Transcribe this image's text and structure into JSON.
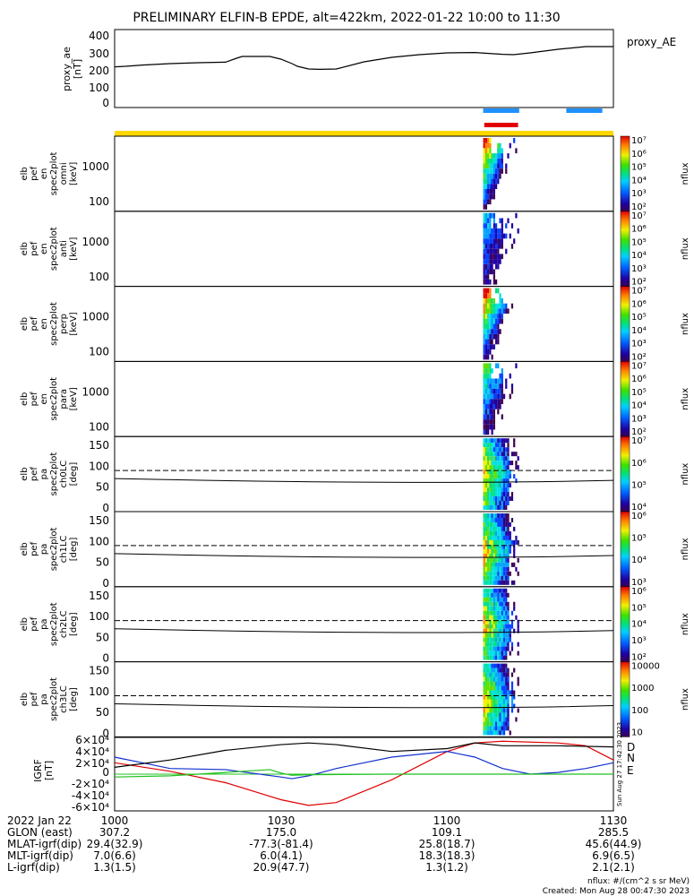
{
  "title": "PRELIMINARY ELFIN-B EPDE, alt=422km, 2022-01-22 10:00 to 11:30",
  "colors": {
    "science_bar": "#1e90ff",
    "epd_bar": "#e00000",
    "yellow_bar": "#ffd700",
    "grf_D": "#e00000",
    "grf_N": "#1030d0",
    "grf_E": "#20c020"
  },
  "chart_data": [
    {
      "id": "proxy_ae",
      "type": "line",
      "title": "",
      "legend": "proxy_AE",
      "ylabel": [
        "proxy_ae",
        "[nT]"
      ],
      "ylim": [
        0,
        400
      ],
      "yticks": [
        "400",
        "300",
        "200",
        "100",
        "0"
      ],
      "x_minutes": [
        0,
        2,
        5,
        10,
        15,
        20,
        22,
        23,
        25,
        28,
        30,
        32,
        33,
        35,
        37,
        40,
        45,
        50,
        55,
        60,
        65,
        70,
        72,
        75,
        80,
        85,
        90
      ],
      "values": [
        222,
        225,
        232,
        240,
        245,
        248,
        270,
        280,
        280,
        280,
        265,
        240,
        225,
        210,
        208,
        210,
        250,
        275,
        290,
        300,
        302,
        292,
        290,
        300,
        320,
        335,
        335
      ]
    },
    {
      "id": "science_bars",
      "type": "bar",
      "segments": [
        {
          "name": "science zone",
          "color": "#1e90ff",
          "start_min": 66.5,
          "end_min": 73.0
        },
        {
          "name": "science zone",
          "color": "#1e90ff",
          "start_min": 81.5,
          "end_min": 88.0
        },
        {
          "name": "epd",
          "color": "#e00000",
          "start_min": 66.7,
          "end_min": 72.8
        }
      ]
    },
    {
      "id": "spec_panels",
      "type": "heatmap",
      "colorbar_label": "nflux",
      "colorbar_ticks": [
        "10",
        "100",
        "1000",
        "10000",
        "10²",
        "10³",
        "10⁴",
        "10⁵",
        "10⁶",
        "10⁷"
      ],
      "panels": [
        {
          "label": [
            "elb",
            "pef",
            "en",
            "spec2plot",
            "omni",
            "[keV]"
          ],
          "yticks": [
            "1000",
            "100"
          ],
          "kind": "energy"
        },
        {
          "label": [
            "elb",
            "pef",
            "en",
            "spec2plot",
            "anti",
            "[keV]"
          ],
          "yticks": [
            "1000",
            "100"
          ],
          "kind": "energy"
        },
        {
          "label": [
            "elb",
            "pef",
            "en",
            "spec2plot",
            "perp",
            "[keV]"
          ],
          "yticks": [
            "1000",
            "100"
          ],
          "kind": "energy"
        },
        {
          "label": [
            "elb",
            "pef",
            "en",
            "spec2plot",
            "para",
            "[keV]"
          ],
          "yticks": [
            "1000",
            "100"
          ],
          "kind": "energy"
        },
        {
          "label": [
            "elb",
            "pef",
            "pa",
            "spec2plot",
            "ch0LC",
            "[deg]"
          ],
          "yticks": [
            "150",
            "100",
            "50",
            "0"
          ],
          "kind": "pa",
          "ylim": [
            0,
            180
          ]
        },
        {
          "label": [
            "elb",
            "pef",
            "pa",
            "spec2plot",
            "ch1LC",
            "[deg]"
          ],
          "yticks": [
            "150",
            "100",
            "50",
            "0"
          ],
          "kind": "pa",
          "ylim": [
            0,
            180
          ]
        },
        {
          "label": [
            "elb",
            "pef",
            "pa",
            "spec2plot",
            "ch2LC",
            "[deg]"
          ],
          "yticks": [
            "150",
            "100",
            "50",
            "0"
          ],
          "kind": "pa",
          "ylim": [
            0,
            180
          ]
        },
        {
          "label": [
            "elb",
            "pef",
            "pa",
            "spec2plot",
            "ch3LC",
            "[deg]"
          ],
          "yticks": [
            "150",
            "100",
            "50",
            "0"
          ],
          "kind": "pa",
          "ylim": [
            0,
            180
          ]
        }
      ],
      "colorbar_tick_sets": [
        [
          "10⁷",
          "10⁶",
          "10⁵",
          "10⁴",
          "10³",
          "10²"
        ],
        [
          "10⁷",
          "10⁶",
          "10⁵",
          "10⁴",
          "10³",
          "10²"
        ],
        [
          "10⁷",
          "10⁶",
          "10⁵",
          "10⁴",
          "10³",
          "10²"
        ],
        [
          "10⁷",
          "10⁶",
          "10⁵",
          "10⁴",
          "10³",
          "10²"
        ],
        [
          "10⁷",
          "10⁶",
          "10⁵",
          "10⁴"
        ],
        [
          "10⁶",
          "10⁵",
          "10⁴",
          "10³"
        ],
        [
          "10⁶",
          "10⁵",
          "10⁴",
          "10³",
          "10²"
        ],
        [
          "10000",
          "1000",
          "100",
          "10"
        ]
      ]
    },
    {
      "id": "igrf",
      "type": "line",
      "ylabel": [
        "IGRF",
        "[nT]"
      ],
      "ylim": [
        -60000,
        60000
      ],
      "yticks": [
        "6×10⁴",
        "4×10⁴",
        "2×10⁴",
        "0",
        "-2×10⁴",
        "-4×10⁴",
        "-6×10⁴"
      ],
      "series": [
        {
          "name": "D",
          "color": "#e00000",
          "x_minutes": [
            0,
            10,
            20,
            30,
            35,
            40,
            50,
            60,
            65,
            70,
            80,
            85,
            90
          ],
          "values": [
            20000,
            5000,
            -15000,
            -45000,
            -55000,
            -50000,
            -10000,
            40000,
            55000,
            58000,
            55000,
            50000,
            25000
          ]
        },
        {
          "name": "N",
          "color": "#1030d0",
          "x_minutes": [
            0,
            5,
            10,
            20,
            30,
            32,
            35,
            40,
            50,
            60,
            65,
            70,
            75,
            80,
            85,
            90
          ],
          "values": [
            30000,
            20000,
            10000,
            8000,
            -5000,
            -8000,
            -3000,
            10000,
            30000,
            40000,
            30000,
            10000,
            0,
            3000,
            10000,
            20000
          ]
        },
        {
          "name": "E",
          "color": "#20c020",
          "x_minutes": [
            0,
            10,
            20,
            28,
            30,
            32,
            35,
            50,
            70,
            90
          ],
          "values": [
            -5000,
            -3000,
            3000,
            8000,
            2000,
            -2000,
            -1000,
            0,
            0,
            0
          ]
        },
        {
          "name": "",
          "color": "#000000",
          "x_minutes": [
            0,
            10,
            20,
            30,
            35,
            40,
            50,
            60,
            65,
            70,
            80,
            90
          ],
          "values": [
            12000,
            25000,
            42000,
            52000,
            55000,
            52000,
            40000,
            45000,
            55000,
            50000,
            50000,
            48000
          ]
        }
      ]
    }
  ],
  "xaxis": {
    "ticks": [
      "1000",
      "1030",
      "1100",
      "1130"
    ],
    "date": "2022 Jan 22",
    "rows": [
      {
        "label": "GLON (east)",
        "values": [
          "307.2",
          "175.0",
          "109.1",
          "285.5"
        ]
      },
      {
        "label": "MLAT-igrf(dip)",
        "values": [
          "29.4(32.9)",
          "-77.3(-81.4)",
          "25.8(18.7)",
          "45.6(44.9)"
        ]
      },
      {
        "label": "MLT-igrf(dip)",
        "values": [
          "7.0(6.6)",
          "6.0(4.1)",
          "18.3(18.3)",
          "6.9(6.5)"
        ]
      },
      {
        "label": "L-igrf(dip)",
        "values": [
          "1.3(1.5)",
          "20.9(47.7)",
          "1.3(1.2)",
          "2.1(2.1)"
        ]
      }
    ]
  },
  "side_stamp": "Sun Aug 27 17:42:30 2023",
  "footer": {
    "units": "nflux: #/(cm^2 s sr MeV)",
    "created": "Created: Mon Aug 28 00:47:30 2023"
  }
}
